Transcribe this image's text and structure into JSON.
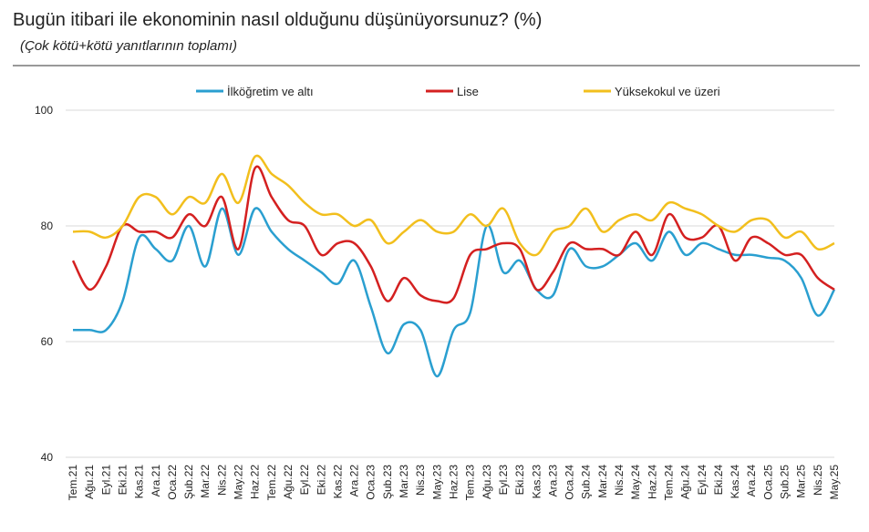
{
  "chart_data": {
    "type": "line",
    "title": "Bugün itibari ile ekonominin nasıl olduğunu düşünüyorsunuz? (%)",
    "subtitle": "(Çok kötü+kötü yanıtlarının toplamı)",
    "categories": [
      "Tem.21",
      "Ağu.21",
      "Eyl.21",
      "Eki.21",
      "Kas.21",
      "Ara.21",
      "Oca.22",
      "Şub.22",
      "Mar.22",
      "Nis.22",
      "May.22",
      "Haz.22",
      "Tem.22",
      "Ağu.22",
      "Eyl.22",
      "Eki.22",
      "Kas.22",
      "Ara.22",
      "Oca.23",
      "Şub.23",
      "Mar.23",
      "Nis.23",
      "May.23",
      "Haz.23",
      "Tem.23",
      "Ağu.23",
      "Eyl.23",
      "Eki.23",
      "Kas.23",
      "Ara.23",
      "Oca.24",
      "Şub.24",
      "Mar.24",
      "Nis.24",
      "May.24",
      "Haz.24",
      "Tem.24",
      "Ağu.24",
      "Eyl.24",
      "Eki.24",
      "Kas.24",
      "Ara.24",
      "Oca.25",
      "Şub.25",
      "Mar.25",
      "Nis.25",
      "May.25"
    ],
    "series": [
      {
        "name": "İlköğretim ve altı",
        "color": "#2a9fd0",
        "values": [
          62,
          62,
          62,
          67,
          78,
          76,
          74,
          80,
          73,
          83,
          75,
          83,
          79,
          76,
          74,
          72,
          70,
          74,
          66,
          58,
          63,
          62,
          54,
          62,
          65,
          80,
          72,
          74,
          69,
          68,
          76,
          73,
          73,
          75,
          77,
          74,
          79,
          75,
          77,
          76,
          75,
          75,
          74.5,
          74,
          71,
          64.5,
          69
        ]
      },
      {
        "name": "Lise",
        "color": "#d42020",
        "values": [
          74,
          69,
          73,
          80,
          79,
          79,
          78,
          82,
          80,
          85,
          76,
          90,
          85,
          81,
          80,
          75,
          77,
          77,
          73,
          67,
          71,
          68,
          67,
          67.5,
          75,
          76,
          77,
          76,
          69,
          72,
          77,
          76,
          76,
          75,
          79,
          75,
          82,
          78,
          78,
          80,
          74,
          78,
          77,
          75,
          75,
          71,
          69
        ]
      },
      {
        "name": "Yüksekokul ve üzeri",
        "color": "#f2bf1d",
        "values": [
          79,
          79,
          78,
          80,
          85,
          85,
          82,
          85,
          84,
          89,
          84,
          92,
          89,
          87,
          84,
          82,
          82,
          80,
          81,
          77,
          79,
          81,
          79,
          79,
          82,
          80,
          83,
          77,
          75,
          79,
          80,
          83,
          79,
          81,
          82,
          81,
          84,
          83,
          82,
          80,
          79,
          81,
          81,
          78,
          79,
          76,
          77
        ]
      }
    ],
    "ylim": [
      40,
      100
    ],
    "yticks": [
      40,
      60,
      80,
      100
    ],
    "grid": true
  }
}
